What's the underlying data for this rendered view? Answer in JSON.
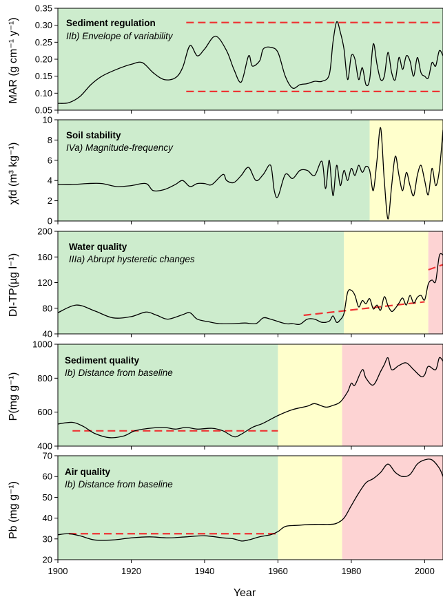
{
  "colors": {
    "green": "#cdeccd",
    "yellow": "#ffffcc",
    "red": "#fdd3d3",
    "trend": "#ee3333",
    "line": "#000000"
  },
  "chart_data": [
    {
      "type": "line",
      "title": "Sediment regulation",
      "subtitle": "IIb) Envelope of variability",
      "ylabel": "MAR (g cm⁻¹ y⁻¹)",
      "xlim": [
        1900,
        2005
      ],
      "ylim": [
        0.05,
        0.35
      ],
      "yticks": [
        "0.05",
        "0.10",
        "0.15",
        "0.20",
        "0.25",
        "0.30",
        "0.35"
      ],
      "bands": [
        {
          "from": 1900,
          "to": 2005,
          "color": "green"
        }
      ],
      "trend_lines": [
        {
          "x": [
            1935,
            2005
          ],
          "y": [
            0.308,
            0.308
          ]
        },
        {
          "x": [
            1935,
            2005
          ],
          "y": [
            0.105,
            0.105
          ]
        }
      ],
      "series": [
        {
          "x": [
            1900,
            1903,
            1906,
            1909,
            1912,
            1916,
            1920,
            1923,
            1926,
            1929,
            1932,
            1934,
            1936,
            1938,
            1940,
            1943,
            1946,
            1948,
            1950,
            1952,
            1953,
            1955,
            1956,
            1958,
            1960,
            1962,
            1964,
            1966,
            1968,
            1970,
            1972,
            1974,
            1975,
            1976,
            1977,
            1978,
            1979,
            1980,
            1981,
            1982,
            1983,
            1984,
            1985,
            1986,
            1987,
            1988,
            1989,
            1990,
            1991,
            1992,
            1993,
            1994,
            1995,
            1996,
            1997,
            1998,
            1999,
            2000,
            2001,
            2002,
            2003,
            2004,
            2005
          ],
          "y": [
            0.07,
            0.072,
            0.09,
            0.125,
            0.15,
            0.17,
            0.185,
            0.19,
            0.16,
            0.14,
            0.145,
            0.175,
            0.24,
            0.21,
            0.23,
            0.268,
            0.225,
            0.17,
            0.133,
            0.21,
            0.18,
            0.195,
            0.23,
            0.235,
            0.22,
            0.15,
            0.115,
            0.125,
            0.128,
            0.135,
            0.135,
            0.155,
            0.25,
            0.31,
            0.28,
            0.23,
            0.14,
            0.21,
            0.2,
            0.14,
            0.175,
            0.125,
            0.14,
            0.245,
            0.185,
            0.14,
            0.15,
            0.22,
            0.16,
            0.14,
            0.205,
            0.17,
            0.21,
            0.195,
            0.15,
            0.205,
            0.16,
            0.15,
            0.145,
            0.19,
            0.18,
            0.225,
            0.21
          ]
        }
      ]
    },
    {
      "type": "line",
      "title": "Soil stability",
      "subtitle": "IVa) Magnitude-frequency",
      "ylabel": "χfd (m³ kg⁻¹)",
      "xlim": [
        1900,
        2005
      ],
      "ylim": [
        0,
        10
      ],
      "yticks": [
        "0",
        "2",
        "4",
        "6",
        "8",
        "10"
      ],
      "bands": [
        {
          "from": 1900,
          "to": 1985,
          "color": "green"
        },
        {
          "from": 1985,
          "to": 2005,
          "color": "yellow"
        }
      ],
      "trend_lines": [],
      "series": [
        {
          "x": [
            1900,
            1904,
            1908,
            1912,
            1916,
            1920,
            1924,
            1926,
            1929,
            1932,
            1934,
            1936,
            1938,
            1940,
            1942,
            1945,
            1946,
            1948,
            1950,
            1952,
            1954,
            1956,
            1958,
            1959,
            1960,
            1962,
            1964,
            1966,
            1968,
            1970,
            1972,
            1973,
            1974,
            1975,
            1976,
            1977,
            1978,
            1979,
            1980,
            1981,
            1982,
            1983,
            1984,
            1985,
            1986,
            1987,
            1988,
            1989,
            1990,
            1991,
            1992,
            1993,
            1994,
            1995,
            1996,
            1997,
            1998,
            1999,
            2000,
            2001,
            2002,
            2003,
            2004,
            2005
          ],
          "y": [
            3.6,
            3.6,
            3.7,
            3.7,
            3.4,
            3.5,
            3.7,
            3.0,
            3.1,
            3.6,
            4.0,
            3.4,
            3.7,
            3.7,
            3.6,
            4.6,
            4.0,
            3.8,
            4.5,
            5.3,
            4.0,
            4.6,
            5.5,
            3.0,
            2.4,
            4.6,
            4.2,
            5.0,
            5.0,
            4.5,
            5.9,
            3.2,
            6.0,
            2.5,
            5.5,
            3.5,
            5.0,
            4.0,
            5.2,
            4.5,
            5.5,
            4.8,
            5.4,
            5.0,
            3.0,
            6.0,
            9.2,
            4.0,
            0.2,
            3.5,
            6.4,
            4.5,
            3.0,
            4.8,
            3.5,
            2.5,
            4.5,
            5.5,
            4.0,
            2.6,
            5.2,
            3.5,
            5.0,
            9.0
          ]
        }
      ]
    },
    {
      "type": "line",
      "title": "Water quality",
      "subtitle": "IIIa) Abrupt hysteretic changes",
      "ylabel": "DI-TP(µg l⁻¹)",
      "xlim": [
        1900,
        2005
      ],
      "ylim": [
        40,
        200
      ],
      "yticks": [
        "40",
        "80",
        "120",
        "160",
        "200"
      ],
      "bands": [
        {
          "from": 1900,
          "to": 1978,
          "color": "green"
        },
        {
          "from": 1978,
          "to": 2001,
          "color": "yellow"
        },
        {
          "from": 2001,
          "to": 2005,
          "color": "red"
        }
      ],
      "trend_lines": [
        {
          "x": [
            1967,
            2000
          ],
          "y": [
            69,
            90
          ]
        },
        {
          "x": [
            2001,
            2005
          ],
          "y": [
            140,
            148
          ]
        }
      ],
      "series": [
        {
          "x": [
            1900,
            1905,
            1910,
            1915,
            1920,
            1924,
            1927,
            1930,
            1934,
            1936,
            1938,
            1941,
            1944,
            1948,
            1951,
            1954,
            1956,
            1958,
            1962,
            1964,
            1966,
            1968,
            1970,
            1972,
            1974,
            1975,
            1976,
            1977,
            1978,
            1979,
            1980,
            1981,
            1982,
            1983,
            1984,
            1985,
            1986,
            1987,
            1988,
            1989,
            1990,
            1991,
            1992,
            1993,
            1994,
            1995,
            1996,
            1997,
            1998,
            1999,
            2000,
            2001,
            2002,
            2003,
            2004,
            2005
          ],
          "y": [
            73,
            85,
            76,
            65,
            67,
            74,
            69,
            63,
            70,
            73,
            63,
            59,
            56,
            56,
            57,
            56,
            65,
            63,
            56,
            56,
            55,
            63,
            63,
            58,
            60,
            68,
            58,
            62,
            72,
            105,
            108,
            100,
            82,
            92,
            87,
            95,
            79,
            85,
            77,
            98,
            84,
            75,
            80,
            88,
            96,
            85,
            100,
            88,
            97,
            100,
            93,
            118,
            124,
            122,
            162,
            163
          ]
        }
      ]
    },
    {
      "type": "line",
      "title": "Sediment quality",
      "subtitle": "Ib) Distance from baseline",
      "ylabel": "P(mg g⁻¹)",
      "xlim": [
        1900,
        2005
      ],
      "ylim": [
        400,
        1000
      ],
      "yticks": [
        "400",
        "600",
        "800",
        "1000"
      ],
      "bands": [
        {
          "from": 1900,
          "to": 1960,
          "color": "green"
        },
        {
          "from": 1960,
          "to": 1977.5,
          "color": "yellow"
        },
        {
          "from": 1977.5,
          "to": 2005,
          "color": "red"
        }
      ],
      "trend_lines": [
        {
          "x": [
            1904,
            1960
          ],
          "y": [
            490,
            490
          ]
        }
      ],
      "series": [
        {
          "x": [
            1900,
            1904,
            1907,
            1910,
            1914,
            1918,
            1921,
            1925,
            1929,
            1932,
            1935,
            1938,
            1942,
            1945,
            1948,
            1950,
            1953,
            1956,
            1960,
            1964,
            1968,
            1970,
            1973,
            1975,
            1977,
            1979,
            1980,
            1981,
            1983,
            1984,
            1986,
            1988,
            1989,
            1990,
            1991,
            1993,
            1995,
            1997,
            1999,
            2000,
            2001,
            2003,
            2004,
            2005
          ],
          "y": [
            530,
            540,
            515,
            475,
            450,
            460,
            490,
            505,
            510,
            500,
            510,
            500,
            505,
            490,
            455,
            470,
            510,
            535,
            580,
            615,
            635,
            650,
            630,
            640,
            660,
            720,
            770,
            760,
            850,
            800,
            760,
            840,
            880,
            920,
            850,
            875,
            890,
            850,
            810,
            820,
            870,
            850,
            920,
            900
          ]
        }
      ]
    },
    {
      "type": "line",
      "title": "Air quality",
      "subtitle": "Ib) Distance from baseline",
      "ylabel": "Pb (mg g⁻¹)",
      "xlabel": "Year",
      "xlim": [
        1900,
        2005
      ],
      "ylim": [
        20,
        70
      ],
      "yticks": [
        "20",
        "30",
        "40",
        "50",
        "60",
        "70"
      ],
      "xticks": [
        "1900",
        "1920",
        "1940",
        "1960",
        "1980",
        "2000"
      ],
      "bands": [
        {
          "from": 1900,
          "to": 1960,
          "color": "green"
        },
        {
          "from": 1960,
          "to": 1977.5,
          "color": "yellow"
        },
        {
          "from": 1977.5,
          "to": 2005,
          "color": "red"
        }
      ],
      "trend_lines": [
        {
          "x": [
            1903,
            1960
          ],
          "y": [
            32.5,
            32.5
          ]
        }
      ],
      "series": [
        {
          "x": [
            1900,
            1903,
            1906,
            1910,
            1915,
            1920,
            1925,
            1930,
            1935,
            1940,
            1945,
            1948,
            1950,
            1952,
            1955,
            1958,
            1960,
            1962,
            1965,
            1970,
            1974,
            1976,
            1978,
            1980,
            1982,
            1984,
            1986,
            1988,
            1990,
            1992,
            1994,
            1996,
            1998,
            2000,
            2002,
            2004,
            2005
          ],
          "y": [
            32,
            32.5,
            31.5,
            29.5,
            29.5,
            30.5,
            31,
            30.5,
            31,
            31.5,
            30.5,
            30,
            29,
            29.5,
            31,
            32,
            33.5,
            36,
            36.5,
            37,
            37,
            37.5,
            40,
            46,
            52,
            57,
            59,
            62,
            66,
            62,
            60,
            61,
            66,
            68,
            68,
            64,
            60
          ]
        }
      ]
    }
  ]
}
